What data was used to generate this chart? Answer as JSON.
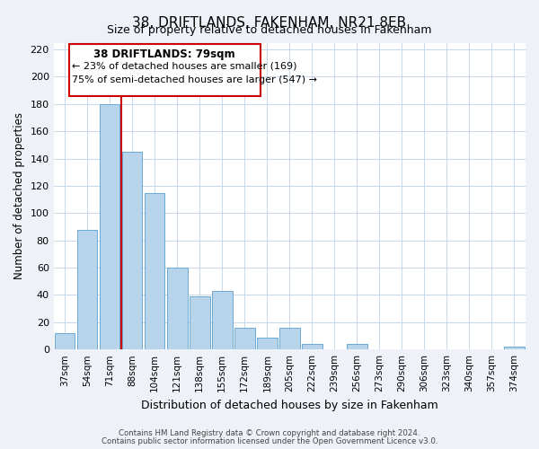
{
  "title": "38, DRIFTLANDS, FAKENHAM, NR21 8EB",
  "subtitle": "Size of property relative to detached houses in Fakenham",
  "xlabel": "Distribution of detached houses by size in Fakenham",
  "ylabel": "Number of detached properties",
  "bar_labels": [
    "37sqm",
    "54sqm",
    "71sqm",
    "88sqm",
    "104sqm",
    "121sqm",
    "138sqm",
    "155sqm",
    "172sqm",
    "189sqm",
    "205sqm",
    "222sqm",
    "239sqm",
    "256sqm",
    "273sqm",
    "290sqm",
    "306sqm",
    "323sqm",
    "340sqm",
    "357sqm",
    "374sqm"
  ],
  "bar_values": [
    12,
    88,
    180,
    145,
    115,
    60,
    39,
    43,
    16,
    9,
    16,
    4,
    0,
    4,
    0,
    0,
    0,
    0,
    0,
    0,
    2
  ],
  "bar_color": "#b8d4ea",
  "bar_edge_color": "#6aaad4",
  "vline_color": "#cc0000",
  "annotation_title": "38 DRIFTLANDS: 79sqm",
  "annotation_line1": "← 23% of detached houses are smaller (169)",
  "annotation_line2": "75% of semi-detached houses are larger (547) →",
  "annotation_box_color": "#ffffff",
  "annotation_box_edge": "#cc0000",
  "ylim": [
    0,
    225
  ],
  "yticks": [
    0,
    20,
    40,
    60,
    80,
    100,
    120,
    140,
    160,
    180,
    200,
    220
  ],
  "footer1": "Contains HM Land Registry data © Crown copyright and database right 2024.",
  "footer2": "Contains public sector information licensed under the Open Government Licence v3.0.",
  "bg_color": "#eef2f8",
  "plot_bg_color": "#ffffff",
  "grid_color": "#c8d8ec"
}
